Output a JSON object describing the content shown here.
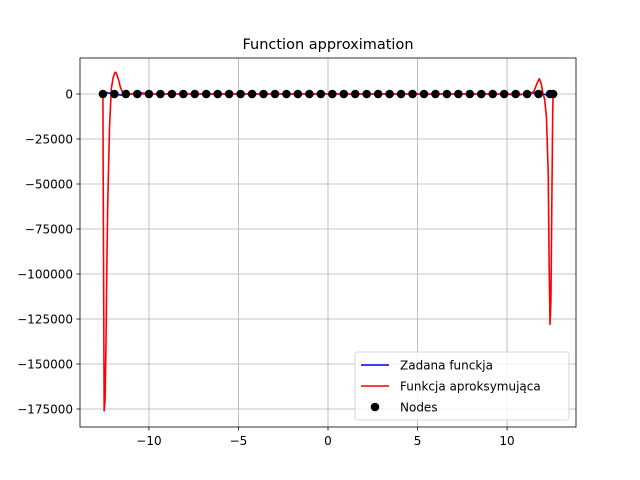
{
  "chart_data": {
    "type": "line",
    "title": "Function approximation",
    "xlabel": "",
    "ylabel": "",
    "xlim": [
      -13.85,
      13.85
    ],
    "ylim": [
      -185000,
      20000
    ],
    "xticks": [
      -10,
      -5,
      0,
      5,
      10
    ],
    "xtick_labels": [
      "−10",
      "−5",
      "0",
      "5",
      "10"
    ],
    "yticks": [
      0,
      -25000,
      -50000,
      -75000,
      -100000,
      -125000,
      -150000,
      -175000
    ],
    "ytick_labels": [
      "0",
      "−25000",
      "−50000",
      "−75000",
      "−100000",
      "−125000",
      "−150000",
      "−175000"
    ],
    "grid": true,
    "legend_position": "lower-right",
    "series": [
      {
        "name": "Zadana funckja",
        "kind": "line",
        "color": "#0000ff",
        "x": [
          -12.57,
          -12.3,
          -12.0,
          -11.5,
          -11.0,
          -10.5,
          -10.0,
          -9.0,
          -8.0,
          -7.0,
          -6.0,
          -5.0,
          -4.0,
          -3.0,
          -2.0,
          -1.0,
          0.0,
          1.0,
          2.0,
          3.0,
          4.0,
          5.0,
          6.0,
          7.0,
          8.0,
          9.0,
          10.0,
          10.5,
          11.0,
          11.5,
          12.0,
          12.3,
          12.57
        ],
        "y": [
          0,
          700,
          0,
          -700,
          0,
          700,
          0,
          0,
          0,
          0,
          0,
          0,
          0,
          0,
          0,
          0,
          0,
          0,
          0,
          0,
          0,
          0,
          0,
          0,
          0,
          0,
          0,
          -700,
          0,
          700,
          0,
          -700,
          0
        ]
      },
      {
        "name": "Funkcja aproksymująca",
        "kind": "line",
        "color": "#ff0000",
        "x": [
          -12.57,
          -12.55,
          -12.5,
          -12.45,
          -12.4,
          -12.35,
          -12.3,
          -12.2,
          -12.1,
          -12.0,
          -11.9,
          -11.85,
          -11.8,
          -11.7,
          -11.6,
          -11.5,
          -11.3,
          -11.0,
          -10.5,
          -10.0,
          10.0,
          10.5,
          11.0,
          11.3,
          11.5,
          11.6,
          11.7,
          11.8,
          11.9,
          12.0,
          12.1,
          12.2,
          12.3,
          12.35,
          12.4,
          12.45,
          12.5,
          12.55,
          12.57
        ],
        "y": [
          0,
          -60000,
          -176000,
          -170000,
          -140000,
          -95000,
          -60000,
          -18000,
          3000,
          9000,
          12000,
          12000,
          11000,
          8000,
          4000,
          1500,
          300,
          0,
          0,
          0,
          0,
          0,
          -200,
          0,
          1500,
          4000,
          6500,
          8500,
          6000,
          500,
          -3000,
          -13000,
          -45000,
          -95000,
          -128000,
          -115000,
          -60000,
          -10000,
          0
        ]
      },
      {
        "name": "Nodes",
        "kind": "scatter",
        "color": "#000000",
        "x": [
          -12.57,
          -11.93,
          -11.29,
          -10.65,
          -10.0,
          -9.36,
          -8.72,
          -8.08,
          -7.44,
          -6.8,
          -6.16,
          -5.52,
          -4.88,
          -4.24,
          -3.6,
          -2.96,
          -2.32,
          -1.68,
          -1.04,
          -0.4,
          0.24,
          0.88,
          1.52,
          2.16,
          2.8,
          3.44,
          4.08,
          4.72,
          5.36,
          6.0,
          6.64,
          7.28,
          7.92,
          8.56,
          9.2,
          9.84,
          10.48,
          11.12,
          11.76,
          12.4,
          12.57
        ],
        "y": [
          0,
          0,
          0,
          0,
          0,
          0,
          0,
          0,
          0,
          0,
          0,
          0,
          0,
          0,
          0,
          0,
          0,
          0,
          0,
          0,
          0,
          0,
          0,
          0,
          0,
          0,
          0,
          0,
          0,
          0,
          0,
          0,
          0,
          0,
          0,
          0,
          0,
          0,
          0,
          0,
          0
        ]
      }
    ]
  }
}
